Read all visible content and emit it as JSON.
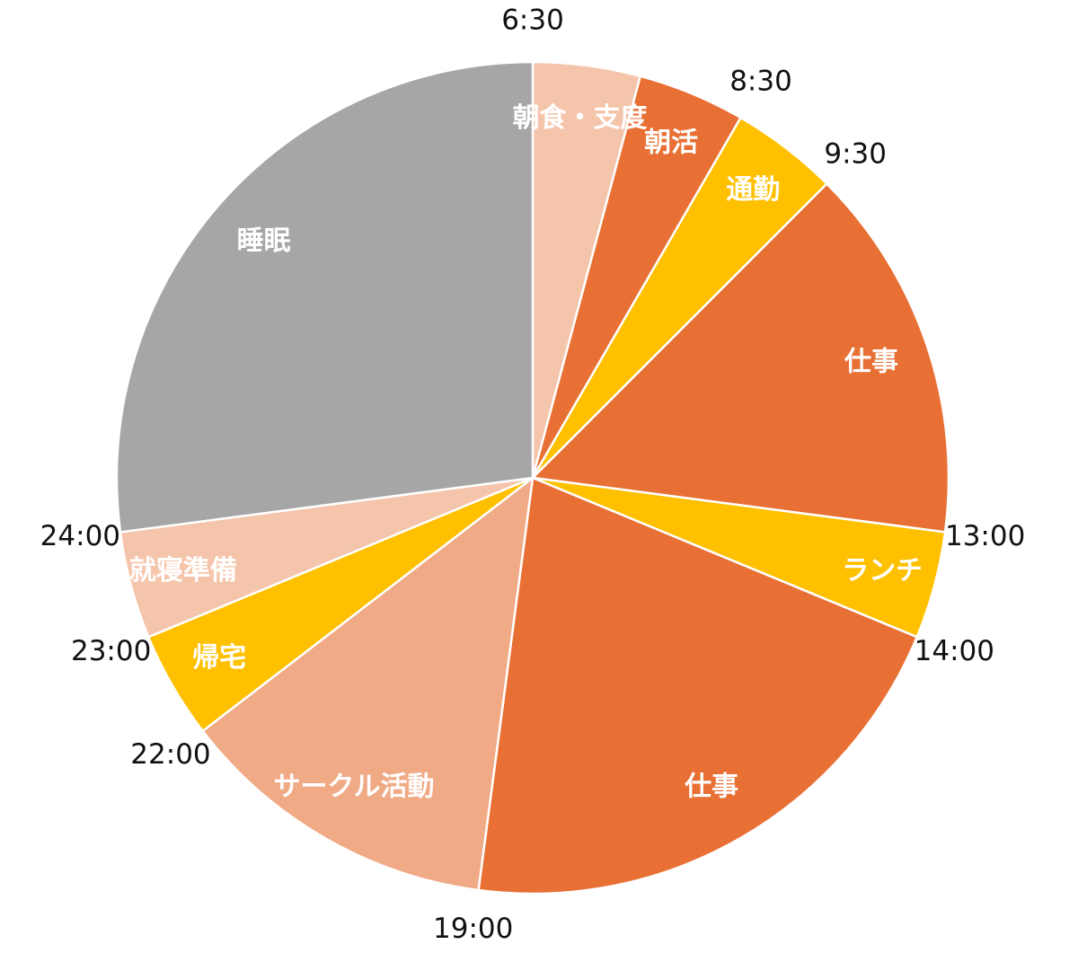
{
  "chart_data": {
    "type": "pie",
    "title": "",
    "start_time": "6:30",
    "unit": "hours",
    "slices": [
      {
        "label": "朝食・支度",
        "start": "6:30",
        "end": "7:30",
        "value": 1,
        "color": "#F5C5AB"
      },
      {
        "label": "朝活",
        "start": "7:30",
        "end": "8:30",
        "value": 1,
        "color": "#E87034"
      },
      {
        "label": "通勤",
        "start": "8:30",
        "end": "9:30",
        "value": 1,
        "color": "#FFC000"
      },
      {
        "label": "仕事",
        "start": "9:30",
        "end": "13:00",
        "value": 3.5,
        "color": "#E87034"
      },
      {
        "label": "ランチ",
        "start": "13:00",
        "end": "14:00",
        "value": 1,
        "color": "#FFC000"
      },
      {
        "label": "仕事",
        "start": "14:00",
        "end": "19:00",
        "value": 5,
        "color": "#E87034"
      },
      {
        "label": "サークル活動",
        "start": "19:00",
        "end": "22:00",
        "value": 3,
        "color": "#F0AA85"
      },
      {
        "label": "帰宅",
        "start": "22:00",
        "end": "23:00",
        "value": 1,
        "color": "#FFC000"
      },
      {
        "label": "就寝準備",
        "start": "23:00",
        "end": "24:00",
        "value": 1,
        "color": "#F5C5AB"
      },
      {
        "label": "睡眠",
        "start": "24:00",
        "end": "6:30",
        "value": 6.5,
        "color": "#A6A6A6"
      }
    ],
    "time_labels": [
      "6:30",
      "8:30",
      "9:30",
      "13:00",
      "14:00",
      "19:00",
      "22:00",
      "23:00",
      "24:00"
    ],
    "legend": "none"
  }
}
